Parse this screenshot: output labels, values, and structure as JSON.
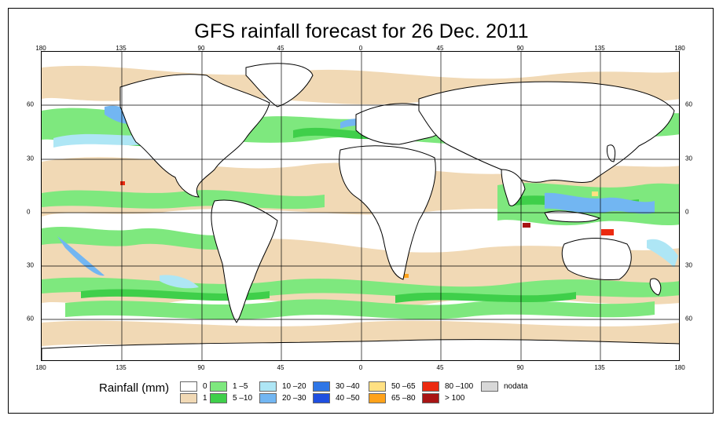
{
  "title": "GFS rainfall forecast for 26 Dec. 2011",
  "longitude_ticks": [
    "180",
    "135",
    "90",
    "45",
    "0",
    "45",
    "90",
    "135",
    "180"
  ],
  "latitude_ticks": [
    "60",
    "30",
    "0",
    "30",
    "60"
  ],
  "legend": {
    "title": "Rainfall (mm)",
    "classes": [
      {
        "label": "0",
        "color": "#ffffff"
      },
      {
        "label": "1",
        "color": "#f1d9b5"
      },
      {
        "label": "1 –5",
        "color": "#7ee87e"
      },
      {
        "label": "5 –10",
        "color": "#3fcf4a"
      },
      {
        "label": "10 –20",
        "color": "#aee6f5"
      },
      {
        "label": "20 –30",
        "color": "#72b6f2"
      },
      {
        "label": "30 –40",
        "color": "#2f76e6"
      },
      {
        "label": "40 –50",
        "color": "#1f4fe0"
      },
      {
        "label": "50 –65",
        "color": "#ffe082"
      },
      {
        "label": "65 –80",
        "color": "#ffa21a"
      },
      {
        "label": "80 –100",
        "color": "#ec2a10"
      },
      {
        "label": "> 100",
        "color": "#a81414"
      },
      {
        "label": "nodata",
        "color": "#d8d8d8"
      }
    ]
  }
}
